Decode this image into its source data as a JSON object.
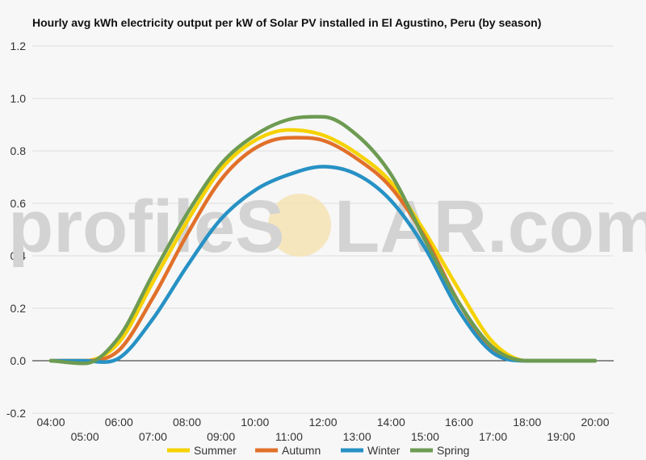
{
  "chart_data": {
    "type": "line",
    "title": "Hourly avg kWh electricity output per kW of Solar PV installed in El Agustino, Peru (by season)",
    "xlabel": "",
    "ylabel": "",
    "x": [
      "04:00",
      "05:00",
      "06:00",
      "07:00",
      "08:00",
      "09:00",
      "10:00",
      "11:00",
      "12:00",
      "13:00",
      "14:00",
      "15:00",
      "16:00",
      "17:00",
      "18:00",
      "19:00",
      "20:00"
    ],
    "ylim": [
      -0.2,
      1.2
    ],
    "yticks": [
      "-0.2",
      "0.0",
      "0.2",
      "0.4",
      "0.6",
      "0.8",
      "1.0",
      "1.2"
    ],
    "grid": true,
    "legend": "bottom",
    "series": [
      {
        "name": "Summer",
        "color": "#f5d200",
        "values": [
          0.0,
          0.0,
          0.07,
          0.3,
          0.53,
          0.73,
          0.84,
          0.88,
          0.86,
          0.79,
          0.68,
          0.49,
          0.27,
          0.07,
          0.0,
          0.0,
          0.0
        ]
      },
      {
        "name": "Autumn",
        "color": "#e1702a",
        "values": [
          0.0,
          0.0,
          0.04,
          0.24,
          0.48,
          0.69,
          0.81,
          0.85,
          0.84,
          0.77,
          0.66,
          0.47,
          0.22,
          0.04,
          0.0,
          0.0,
          0.0
        ]
      },
      {
        "name": "Winter",
        "color": "#2791c4",
        "values": [
          0.0,
          0.0,
          0.01,
          0.16,
          0.36,
          0.54,
          0.65,
          0.71,
          0.74,
          0.71,
          0.61,
          0.43,
          0.19,
          0.03,
          0.0,
          0.0,
          0.0
        ]
      },
      {
        "name": "Spring",
        "color": "#6d9b52",
        "values": [
          0.0,
          -0.01,
          0.09,
          0.33,
          0.56,
          0.75,
          0.86,
          0.92,
          0.93,
          0.86,
          0.71,
          0.46,
          0.22,
          0.05,
          0.0,
          0.0,
          0.0
        ]
      }
    ]
  },
  "watermark": {
    "left": "profileS",
    "right": "LAR.com",
    "sun_color": "#f6e3b4"
  }
}
